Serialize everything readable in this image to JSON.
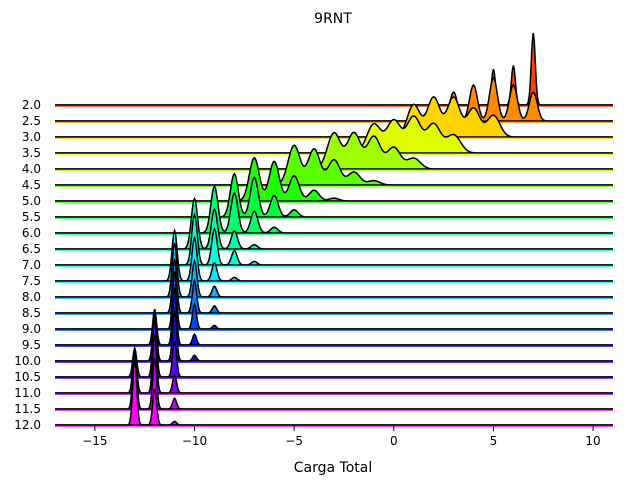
{
  "chart_data": {
    "type": "area",
    "title": "9RNT",
    "xlabel": "Carga Total",
    "ylabel": "",
    "xlim": [
      -17,
      11
    ],
    "xticks": [
      -15,
      -10,
      -5,
      0,
      5,
      10
    ],
    "xtick_labels": [
      "−15",
      "−10",
      "−5",
      "0",
      "5",
      "10"
    ],
    "grid": false,
    "legend": "none",
    "colormap": "gist_rainbow",
    "ridge_labels": [
      "2.0",
      "2.5",
      "3.0",
      "3.5",
      "4.0",
      "4.5",
      "5.0",
      "5.5",
      "6.0",
      "6.5",
      "7.0",
      "7.5",
      "8.0",
      "8.5",
      "9.0",
      "9.5",
      "10.0",
      "10.5",
      "11.0",
      "11.5",
      "12.0"
    ],
    "series": [
      {
        "name": "2.0",
        "color": "#ff4000",
        "peaks": [
          [
            5,
            0.5
          ],
          [
            6,
            0.55
          ],
          [
            7,
            1.0
          ]
        ],
        "width": 0.1
      },
      {
        "name": "2.5",
        "color": "#ff8a00",
        "peaks": [
          [
            3,
            0.4
          ],
          [
            4,
            0.5
          ],
          [
            5,
            0.6
          ],
          [
            6,
            0.5
          ],
          [
            7,
            0.4
          ]
        ],
        "width": 0.2
      },
      {
        "name": "3.0",
        "color": "#ffd400",
        "peaks": [
          [
            1,
            0.45
          ],
          [
            2,
            0.55
          ],
          [
            3,
            0.55
          ],
          [
            4,
            0.4
          ],
          [
            5,
            0.3
          ]
        ],
        "width": 0.32
      },
      {
        "name": "3.5",
        "color": "#dfff00",
        "peaks": [
          [
            -1,
            0.4
          ],
          [
            0,
            0.45
          ],
          [
            1,
            0.5
          ],
          [
            2,
            0.4
          ],
          [
            3,
            0.25
          ]
        ],
        "width": 0.35
      },
      {
        "name": "4.0",
        "color": "#a0ff00",
        "peaks": [
          [
            -3,
            0.5
          ],
          [
            -2,
            0.5
          ],
          [
            -1,
            0.45
          ],
          [
            0,
            0.3
          ],
          [
            1,
            0.15
          ]
        ],
        "width": 0.33
      },
      {
        "name": "4.5",
        "color": "#5cff00",
        "peaks": [
          [
            -5,
            0.55
          ],
          [
            -4,
            0.5
          ],
          [
            -3,
            0.35
          ],
          [
            -2,
            0.18
          ],
          [
            -1,
            0.06
          ]
        ],
        "width": 0.3
      },
      {
        "name": "5.0",
        "color": "#1fff00",
        "peaks": [
          [
            -7,
            0.6
          ],
          [
            -6,
            0.55
          ],
          [
            -5,
            0.35
          ],
          [
            -4,
            0.15
          ],
          [
            -3,
            0.04
          ]
        ],
        "width": 0.25
      },
      {
        "name": "5.5",
        "color": "#00ff3a",
        "peaks": [
          [
            -8,
            0.6
          ],
          [
            -7,
            0.55
          ],
          [
            -6,
            0.3
          ],
          [
            -5,
            0.1
          ]
        ],
        "width": 0.2
      },
      {
        "name": "6.0",
        "color": "#00ff70",
        "peaks": [
          [
            -9,
            0.65
          ],
          [
            -8,
            0.55
          ],
          [
            -7,
            0.3
          ],
          [
            -6,
            0.08
          ]
        ],
        "width": 0.18
      },
      {
        "name": "6.5",
        "color": "#00ffa6",
        "peaks": [
          [
            -10,
            0.7
          ],
          [
            -9,
            0.55
          ],
          [
            -8,
            0.25
          ],
          [
            -7,
            0.06
          ]
        ],
        "width": 0.16
      },
      {
        "name": "7.0",
        "color": "#00ffdc",
        "peaks": [
          [
            -10,
            0.7
          ],
          [
            -9,
            0.5
          ],
          [
            -8,
            0.2
          ],
          [
            -7,
            0.05
          ]
        ],
        "width": 0.14
      },
      {
        "name": "7.5",
        "color": "#00e9ff",
        "peaks": [
          [
            -11,
            0.7
          ],
          [
            -10,
            0.6
          ],
          [
            -9,
            0.25
          ],
          [
            -8,
            0.05
          ]
        ],
        "width": 0.13
      },
      {
        "name": "8.0",
        "color": "#00b4ff",
        "peaks": [
          [
            -11,
            0.75
          ],
          [
            -10,
            0.5
          ],
          [
            -9,
            0.15
          ]
        ],
        "width": 0.12
      },
      {
        "name": "8.5",
        "color": "#007eff",
        "peaks": [
          [
            -11,
            0.75
          ],
          [
            -10,
            0.45
          ],
          [
            -9,
            0.1
          ]
        ],
        "width": 0.11
      },
      {
        "name": "9.0",
        "color": "#0048ff",
        "peaks": [
          [
            -11,
            0.8
          ],
          [
            -10,
            0.35
          ],
          [
            -9,
            0.05
          ]
        ],
        "width": 0.1
      },
      {
        "name": "9.5",
        "color": "#0012ff",
        "peaks": [
          [
            -12,
            0.5
          ],
          [
            -11,
            0.8
          ],
          [
            -10,
            0.15
          ]
        ],
        "width": 0.1
      },
      {
        "name": "10.0",
        "color": "#2500ff",
        "peaks": [
          [
            -12,
            0.65
          ],
          [
            -11,
            0.7
          ],
          [
            -10,
            0.08
          ]
        ],
        "width": 0.1
      },
      {
        "name": "10.5",
        "color": "#5b00ff",
        "peaks": [
          [
            -13,
            0.4
          ],
          [
            -12,
            0.8
          ],
          [
            -11,
            0.5
          ]
        ],
        "width": 0.1
      },
      {
        "name": "11.0",
        "color": "#9100ff",
        "peaks": [
          [
            -13,
            0.6
          ],
          [
            -12,
            0.8
          ],
          [
            -11,
            0.25
          ]
        ],
        "width": 0.1
      },
      {
        "name": "11.5",
        "color": "#c700ff",
        "peaks": [
          [
            -13,
            0.8
          ],
          [
            -12,
            0.7
          ],
          [
            -11,
            0.15
          ]
        ],
        "width": 0.1
      },
      {
        "name": "12.0",
        "color": "#fc00ff",
        "peaks": [
          [
            -13,
            0.9
          ],
          [
            -12,
            0.5
          ],
          [
            -11,
            0.05
          ]
        ],
        "width": 0.1
      }
    ]
  }
}
